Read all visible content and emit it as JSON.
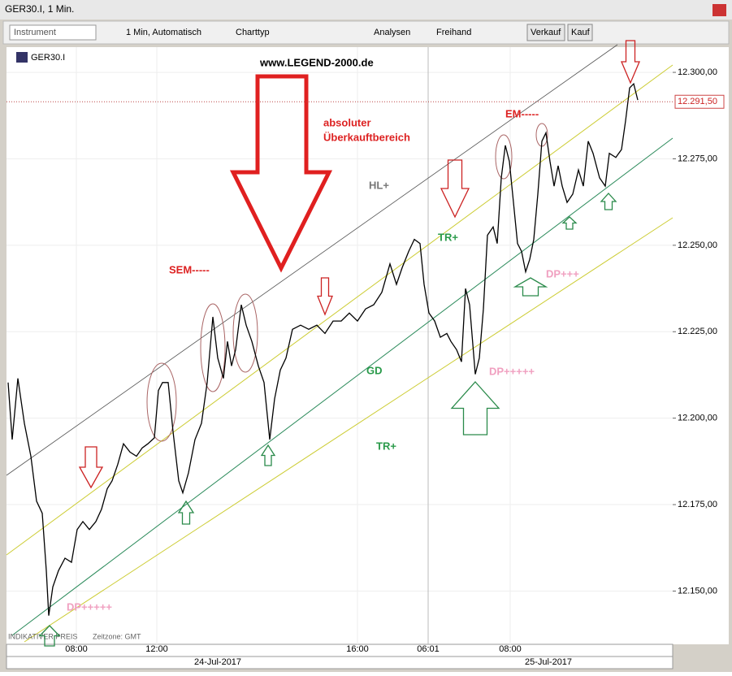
{
  "window": {
    "title": "GER30.I, 1 Min.",
    "toolbar": {
      "instrument": "Instrument",
      "period": "1 Min, Automatisch",
      "chart_type": "Charttyp",
      "analyses": "Analysen",
      "freehand": "Freihand",
      "sell": "Verkauf",
      "buy": "Kauf"
    },
    "symbol": "GER30.I"
  },
  "chart_data": {
    "type": "line",
    "color": "#000000",
    "x": [
      0,
      5,
      12,
      20,
      28,
      35,
      42,
      47,
      50,
      55,
      62,
      70,
      78,
      85,
      92,
      100,
      108,
      115,
      122,
      128,
      135,
      142,
      150,
      158,
      165,
      172,
      180,
      185,
      190,
      197,
      203,
      210,
      215,
      222,
      230,
      238,
      245,
      252,
      258,
      265,
      270,
      275,
      280,
      287,
      293,
      300,
      308,
      315,
      322,
      328,
      335,
      342,
      350,
      360,
      370,
      380,
      390,
      400,
      410,
      420,
      430,
      440,
      450,
      460,
      470,
      478,
      485,
      493,
      500,
      507,
      512,
      518,
      525,
      532,
      540,
      545,
      552,
      558,
      563,
      568,
      575,
      580,
      585,
      590,
      597,
      602,
      607,
      612,
      617,
      622,
      627,
      632,
      637,
      642,
      647,
      652,
      657,
      662,
      667,
      672,
      677,
      682,
      688,
      695,
      702,
      708,
      714,
      720,
      728,
      735,
      740,
      748,
      755,
      760,
      765,
      770,
      775
    ],
    "values": [
      12210.3,
      12193.8,
      12211.5,
      12198.5,
      12189,
      12176,
      12172.5,
      12155.9,
      12142.9,
      12151.2,
      12155.9,
      12159.5,
      12158.3,
      12167.8,
      12170.1,
      12167.8,
      12170.1,
      12173.7,
      12179.6,
      12181.9,
      12186.7,
      12192.6,
      12190.2,
      12189,
      12191.4,
      12192.6,
      12194.3,
      12208,
      12210.3,
      12210.3,
      12196.1,
      12181.9,
      12178.4,
      12184.2,
      12193.8,
      12198.5,
      12210.3,
      12229.3,
      12217.4,
      12211.5,
      12222.2,
      12215.1,
      12219.8,
      12232.8,
      12226.9,
      12222.2,
      12215.1,
      12210.3,
      12193.8,
      12205.6,
      12213.9,
      12217.4,
      12225.7,
      12226.9,
      12225.7,
      12226.9,
      12224.5,
      12228.1,
      12228.1,
      12230.4,
      12228.1,
      12231.6,
      12232.8,
      12236.4,
      12244.6,
      12238.7,
      12243.5,
      12248.2,
      12251.7,
      12250.5,
      12238.7,
      12230.4,
      12228.1,
      12223.4,
      12224.5,
      12222.2,
      12219.8,
      12216.3,
      12237.5,
      12232.8,
      12212.7,
      12217.4,
      12231.6,
      12252.9,
      12255.3,
      12250.5,
      12269.5,
      12278.9,
      12274.2,
      12262.4,
      12250.5,
      12248.2,
      12242.3,
      12245.9,
      12251.7,
      12264.8,
      12280.1,
      12282.5,
      12274.2,
      12267.1,
      12273,
      12267.1,
      12262.4,
      12264.8,
      12271.8,
      12267.1,
      12280.1,
      12276.6,
      12269.5,
      12267.1,
      12276.6,
      12275.4,
      12277.7,
      12286,
      12295.5,
      12296.7,
      12292
    ],
    "xlim": [
      -2,
      818
    ],
    "xticks": [
      {
        "value": 84,
        "label": "08:00"
      },
      {
        "value": 183,
        "label": "12:00"
      },
      {
        "value": 430,
        "label": "16:00"
      },
      {
        "value": 517,
        "label": "06:01"
      },
      {
        "value": 618,
        "label": "08:00"
      }
    ],
    "dates": [
      "24-Jul-2017",
      "25-Jul-2017"
    ],
    "ylim": [
      12134.6,
      12307.3
    ],
    "yticks": [
      {
        "value": 12150,
        "label": "12.150,00"
      },
      {
        "value": 12175,
        "label": "12.175,00"
      },
      {
        "value": 12200,
        "label": "12.200,00"
      },
      {
        "value": 12225,
        "label": "12.225,00"
      },
      {
        "value": 12250,
        "label": "12.250,00"
      },
      {
        "value": 12275,
        "label": "12.275,00"
      },
      {
        "value": 12300,
        "label": "12.300,00"
      }
    ],
    "last_price": {
      "value": 12291.5,
      "label": "12.291,50"
    },
    "grid": true,
    "annotations": [
      "www.LEGEND-2000.de",
      "absoluter",
      "Überkauftbereich",
      "HL+",
      "TR+",
      "GD",
      "TR+",
      "SEM-----",
      "EM-----",
      "DP+++++",
      "DP+++",
      "DP+++++"
    ],
    "footer": [
      "INDIKATIVER PREIS",
      "Zeitzone: GMT"
    ]
  }
}
